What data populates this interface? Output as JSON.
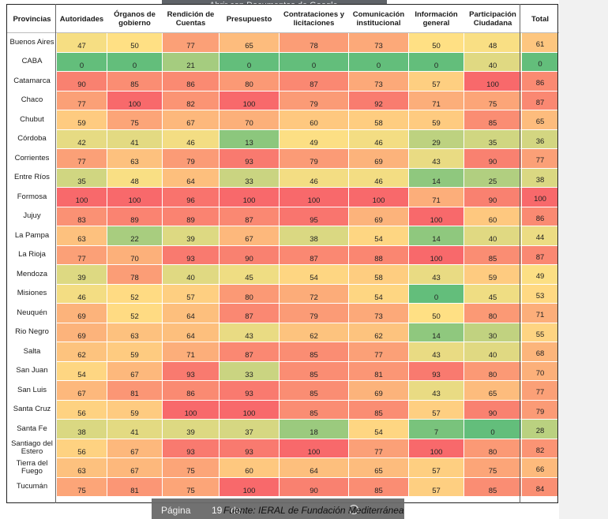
{
  "banner": {
    "text": "Abrir con Documentos de Google"
  },
  "headers": {
    "provincias": "Provincias",
    "columns": [
      "Autoridades",
      "Órganos de gobierno",
      "Rendición de Cuentas",
      "Presupuesto",
      "Contrataciones y licitaciones",
      "Comunicación institucional",
      "Información general",
      "Participación Ciudadana",
      "Total"
    ]
  },
  "rows": [
    {
      "province": "Buenos Aires",
      "values": [
        47,
        50,
        77,
        65,
        78,
        73,
        50,
        48,
        61
      ]
    },
    {
      "province": "CABA",
      "values": [
        0,
        0,
        21,
        0,
        0,
        0,
        0,
        40,
        0
      ]
    },
    {
      "province": "Catamarca",
      "values": [
        90,
        85,
        86,
        80,
        87,
        73,
        57,
        100,
        86
      ]
    },
    {
      "province": "Chaco",
      "values": [
        77,
        100,
        82,
        100,
        79,
        92,
        71,
        75,
        87
      ]
    },
    {
      "province": "Chubut",
      "values": [
        59,
        75,
        67,
        70,
        60,
        58,
        59,
        85,
        65
      ]
    },
    {
      "province": "Córdoba",
      "values": [
        42,
        41,
        46,
        13,
        49,
        46,
        29,
        35,
        36
      ]
    },
    {
      "province": "Corrientes",
      "values": [
        77,
        63,
        79,
        93,
        79,
        69,
        43,
        90,
        77
      ]
    },
    {
      "province": "Entre Ríos",
      "values": [
        35,
        48,
        64,
        33,
        46,
        46,
        14,
        25,
        38
      ]
    },
    {
      "province": "Formosa",
      "values": [
        100,
        100,
        96,
        100,
        100,
        100,
        71,
        90,
        100
      ]
    },
    {
      "province": "Jujuy",
      "values": [
        83,
        89,
        89,
        87,
        95,
        69,
        100,
        60,
        86
      ]
    },
    {
      "province": "La Pampa",
      "values": [
        63,
        22,
        39,
        67,
        38,
        54,
        14,
        40,
        44
      ]
    },
    {
      "province": "La Rioja",
      "values": [
        77,
        70,
        93,
        90,
        87,
        88,
        100,
        85,
        87
      ]
    },
    {
      "province": "Mendoza",
      "values": [
        39,
        78,
        40,
        45,
        54,
        58,
        43,
        59,
        49
      ]
    },
    {
      "province": "Misiones",
      "values": [
        46,
        52,
        57,
        80,
        72,
        54,
        0,
        45,
        53
      ]
    },
    {
      "province": "Neuquén",
      "values": [
        69,
        52,
        64,
        87,
        79,
        73,
        50,
        80,
        71
      ]
    },
    {
      "province": "Rio Negro",
      "values": [
        69,
        63,
        64,
        43,
        62,
        62,
        14,
        30,
        55
      ]
    },
    {
      "province": "Salta",
      "values": [
        62,
        59,
        71,
        87,
        85,
        77,
        43,
        40,
        68
      ]
    },
    {
      "province": "San Juan",
      "values": [
        54,
        67,
        93,
        33,
        85,
        81,
        93,
        80,
        70
      ]
    },
    {
      "province": "San Luis",
      "values": [
        67,
        81,
        86,
        93,
        85,
        69,
        43,
        65,
        77
      ]
    },
    {
      "province": "Santa Cruz",
      "values": [
        56,
        59,
        100,
        100,
        85,
        85,
        57,
        90,
        79
      ]
    },
    {
      "province": "Santa Fe",
      "values": [
        38,
        41,
        39,
        37,
        18,
        54,
        7,
        0,
        28
      ]
    },
    {
      "province": "Santiago del Estero",
      "values": [
        56,
        67,
        93,
        93,
        100,
        77,
        100,
        80,
        82
      ]
    },
    {
      "province": "Tierra del Fuego",
      "values": [
        63,
        67,
        75,
        60,
        64,
        65,
        57,
        75,
        66
      ]
    },
    {
      "province": "Tucumán",
      "values": [
        75,
        81,
        75,
        100,
        90,
        85,
        57,
        85,
        84
      ]
    }
  ],
  "pager": {
    "label": "Página",
    "current": "19",
    "separator": "de",
    "total": "19"
  },
  "source": "Fuente: IERAL de Fundación Mediterránea",
  "colors": {
    "low": "#63be7b",
    "mid": "#ffe084",
    "high": "#f8696b"
  }
}
